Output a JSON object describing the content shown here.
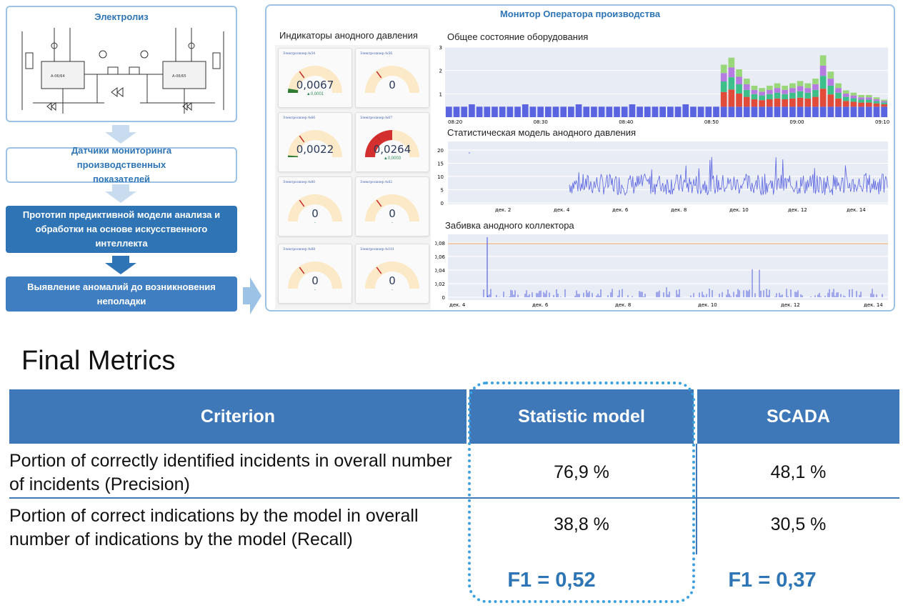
{
  "flow": {
    "electrolysis_title": "Электролиз",
    "step_sensors": "Датчики мониторинга производственных показателей",
    "step_prototype": "Прототип предиктивной модели анализа и обработки на основе искусственного интеллекта",
    "step_anomalies": "Выявление аномалий до возникновения неполадки"
  },
  "monitor": {
    "title": "Монитор Оператора производства",
    "gauges_label": "Индикаторы анодного давления",
    "gauges": [
      {
        "name": "Электролизер №54",
        "value": "0,0067",
        "delta": "▲0,0001",
        "level": 0.05,
        "color": "#2e7d32"
      },
      {
        "name": "Электролизер №56",
        "value": "0",
        "delta": "",
        "level": 0.0,
        "color": "#c62828"
      },
      {
        "name": "Электролизер №66",
        "value": "0,0022",
        "delta": "",
        "level": 0.02,
        "color": "#2e7d32"
      },
      {
        "name": "Электролизер №67",
        "value": "0,0264",
        "delta": "▲0,0003",
        "level": 0.5,
        "color": "#d32f2f"
      },
      {
        "name": "Электролизер №80",
        "value": "0",
        "delta": "-",
        "level": 0.0,
        "color": "#c62828"
      },
      {
        "name": "Электролизер №82",
        "value": "0",
        "delta": "-",
        "level": 0.0,
        "color": "#c62828"
      },
      {
        "name": "Электролизер №88",
        "value": "0",
        "delta": "-",
        "level": 0.0,
        "color": "#c62828"
      },
      {
        "name": "Электролизер №101",
        "value": "0",
        "delta": "-",
        "level": 0.0,
        "color": "#c62828"
      }
    ],
    "equipment_title": "Общее состояние оборудования",
    "equipment_yticks": [
      "3",
      "2",
      "1"
    ],
    "equipment_xticks": [
      "08:20",
      "08:30",
      "08:40",
      "08:50",
      "09:00",
      "09:10"
    ],
    "stat_title": "Статистическая модель анодного давления",
    "stat_yticks": [
      "20",
      "15",
      "10",
      "5",
      "0"
    ],
    "stat_xticks": [
      "дек. 2",
      "дек. 4",
      "дек. 6",
      "дек. 8",
      "дек. 10",
      "дек. 12",
      "дек. 14"
    ],
    "collector_title": "Забивка анодного коллектора",
    "collector_yticks": [
      "0,08",
      "0,06",
      "0,04",
      "0,02",
      "0"
    ],
    "collector_xticks": [
      "дек. 4",
      "дек. 6",
      "дек. 8",
      "дек. 10",
      "дек. 12",
      "дек. 14"
    ]
  },
  "metrics": {
    "title": "Final Metrics",
    "headers": [
      "Criterion",
      "Statistic model",
      "SCADA"
    ],
    "rows": [
      {
        "criterion": "Portion of correctly identified incidents in overall number of incidents (Precision)",
        "stat": "76,9 %",
        "scada": "48,1 %"
      },
      {
        "criterion": "Portion of correct indications by the model in overall number of indications by the model (Recall)",
        "stat": "38,8 %",
        "scada": "30,5 %"
      }
    ],
    "f1_stat": "F1 = 0,52",
    "f1_scada": "F1 = 0,37"
  },
  "colors": {
    "accent_blue": "#2e75b6",
    "header_blue": "#3f78b8",
    "bar_blue": "#5a63e0",
    "dotted_border": "#3aa0e0"
  }
}
